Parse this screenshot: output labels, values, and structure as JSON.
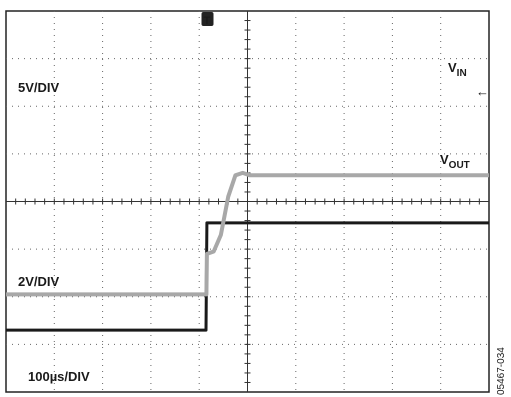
{
  "chart_data": {
    "type": "line",
    "title": "",
    "grid": true,
    "x_divisions": 10,
    "y_divisions": 8,
    "timebase_label": "100µs/DIV",
    "trigger_marker": "T",
    "series": [
      {
        "name": "VIN",
        "label_main": "V",
        "label_sub": "IN",
        "scale_label": "5V/DIV",
        "color": "#1a1a1a",
        "units_per_div": "5V/DIV",
        "points_div": [
          [
            0,
            1.3
          ],
          [
            4.14,
            1.3
          ],
          [
            4.16,
            3.55
          ],
          [
            10,
            3.55
          ]
        ]
      },
      {
        "name": "VOUT",
        "label_main": "V",
        "label_sub": "OUT",
        "scale_label": "2V/DIV",
        "color": "#a8a8a8",
        "units_per_div": "2V/DIV",
        "points_div": [
          [
            0,
            2.05
          ],
          [
            4.15,
            2.05
          ],
          [
            4.16,
            2.9
          ],
          [
            4.3,
            2.95
          ],
          [
            4.45,
            3.3
          ],
          [
            4.6,
            4.1
          ],
          [
            4.75,
            4.55
          ],
          [
            4.9,
            4.6
          ],
          [
            5.05,
            4.55
          ],
          [
            10,
            4.55
          ]
        ]
      }
    ],
    "reference_arrow": "←",
    "figure_id": "05467-034"
  }
}
